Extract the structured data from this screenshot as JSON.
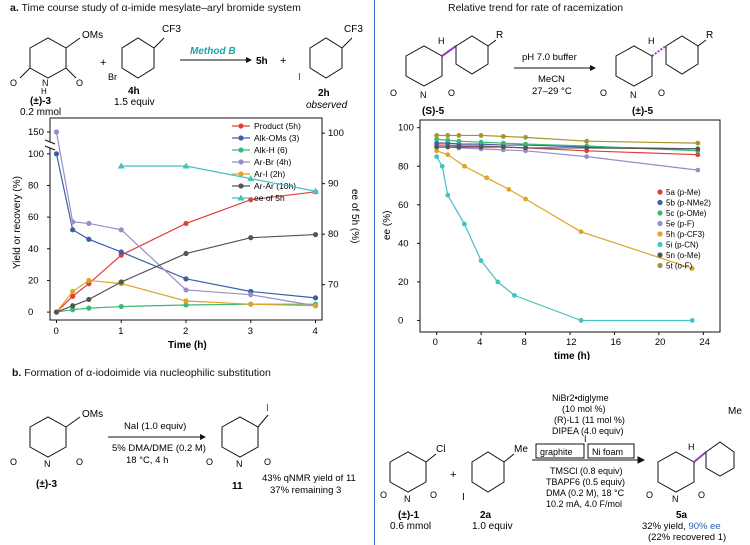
{
  "panel_a": {
    "header_letter": "a.",
    "header_text": "Time course study of α-imide mesylate–aryl bromide system",
    "scheme": {
      "substrate_label": "(±)-3",
      "substrate_amount": "0.2 mmol",
      "substrate_group": "OMs",
      "plus": "+",
      "reagent_label": "4h",
      "reagent_amount": "1.5 equiv",
      "reagent_group": "CF3",
      "reagent_halogen": "Br",
      "method": "Method B",
      "product_label": "5h",
      "plus2": "+",
      "byproduct_label": "2h",
      "byproduct_note": "observed",
      "byproduct_group": "CF3",
      "byproduct_halogen": "I"
    }
  },
  "panel_b": {
    "header_letter": "b.",
    "header_text": "Formation of α-iodoimide via nucleophilic substitution",
    "substrate_label": "(±)-3",
    "substrate_group": "OMs",
    "condition_top": "NaI (1.0 equiv)",
    "condition_mid": "5% DMA/DME (0.2 M)",
    "condition_bot": "18 °C, 4 h",
    "product_label": "11",
    "product_group": "I",
    "yield_line1": "43% qNMR yield of 11",
    "yield_line2": "37% remaining 3"
  },
  "panel_c": {
    "header_text": "Relative trend for rate of racemization",
    "substrate_label": "(S)-5",
    "product_label": "(±)-5",
    "condition_top": "pH 7.0 buffer",
    "condition_mid": "MeCN",
    "condition_bot": "27–29 °C",
    "aryl_group": "R",
    "stereo_h": "H"
  },
  "panel_d": {
    "substrate_label": "(±)-1",
    "substrate_amount": "0.6 mmol",
    "substrate_group": "Cl",
    "plus": "+",
    "reagent_label": "2a",
    "reagent_amount": "1.0 equiv",
    "reagent_group": "Me",
    "reagent_halogen": "I",
    "cond1": "NiBr2•diglyme",
    "cond2": "(10 mol %)",
    "cond3": "(R)-L1 (11 mol %)",
    "cond4": "DIPEA (4.0 equiv)",
    "electrode_left": "graphite",
    "electrode_right": "Ni foam",
    "electrode_mid": "I",
    "cond5": "TMSCl (0.8 equiv)",
    "cond6": "TBAPF6 (0.5 equiv)",
    "cond7": "DMA (0.2 M), 18 °C",
    "cond8": "10.2 mA, 4.0 F/mol",
    "product_label": "5a",
    "product_group": "Me",
    "stereo_h": "H",
    "yield_text": "32% yield, ",
    "ee_text": "90% ee",
    "recovered_text": "(22% recovered 1)"
  },
  "chart_data": [
    {
      "type": "line",
      "xlabel": "Time (h)",
      "ylabel": "Yield or recovery (%)",
      "y2label": "ee of 5h (%)",
      "xlim": [
        -0.1,
        4.1
      ],
      "ylim": [
        -5,
        155
      ],
      "y2lim": [
        63,
        103
      ],
      "xticks": [
        "0",
        "1",
        "2",
        "3",
        "4"
      ],
      "yticks": [
        "0",
        "20",
        "40",
        "60",
        "80",
        "100",
        "150"
      ],
      "y2ticks": [
        "70",
        "80",
        "90",
        "100"
      ],
      "axis_break": true,
      "legend_position": "top-right",
      "series": [
        {
          "name": "Product (5h)",
          "color": "#e0403a",
          "marker": "circle",
          "x": [
            0,
            0.25,
            0.5,
            1,
            2,
            3,
            4
          ],
          "y": [
            0,
            10,
            18,
            36,
            56,
            71,
            76
          ]
        },
        {
          "name": "Alk-OMs (3)",
          "color": "#3c5fa8",
          "marker": "circle",
          "x": [
            0,
            0.25,
            0.5,
            1,
            2,
            3,
            4
          ],
          "y": [
            100,
            52,
            46,
            38,
            21,
            13,
            9
          ]
        },
        {
          "name": "Alk-H (6)",
          "color": "#3cb878",
          "marker": "circle",
          "x": [
            0,
            0.25,
            0.5,
            1,
            2,
            3,
            4
          ],
          "y": [
            0,
            1.5,
            2.5,
            3.5,
            4.5,
            5,
            5
          ]
        },
        {
          "name": "Ar-Br (4h)",
          "color": "#9a8ccc",
          "marker": "circle",
          "x": [
            0,
            0.25,
            0.5,
            1,
            2,
            3,
            4
          ],
          "y": [
            150,
            57,
            56,
            52,
            14,
            11,
            4
          ]
        },
        {
          "name": "Ar-I (2h)",
          "color": "#e0a428",
          "marker": "circle",
          "x": [
            0,
            0.25,
            0.5,
            1,
            2,
            3,
            4
          ],
          "y": [
            0,
            13,
            20,
            18,
            7,
            5,
            4
          ]
        },
        {
          "name": "Ar-Ar (10h)",
          "color": "#555555",
          "marker": "circle",
          "x": [
            0,
            0.25,
            0.5,
            1,
            2,
            3,
            4
          ],
          "y": [
            0,
            4,
            8,
            19,
            37,
            47,
            49
          ]
        },
        {
          "name": "ee of 5h",
          "color": "#45c2c2",
          "marker": "triangle",
          "axis": "y2",
          "x": [
            1,
            2,
            3,
            4
          ],
          "y": [
            93.5,
            93.5,
            91,
            88.5
          ]
        }
      ]
    },
    {
      "type": "line",
      "xlabel": "time (h)",
      "ylabel": "ee (%)",
      "xlim": [
        -1.5,
        25.5
      ],
      "ylim": [
        -6,
        104
      ],
      "xticks": [
        "0",
        "4",
        "8",
        "12",
        "16",
        "20",
        "24"
      ],
      "yticks": [
        "0",
        "20",
        "40",
        "60",
        "80",
        "100"
      ],
      "legend_position": "center-right",
      "series": [
        {
          "name": "5a (p-Me)",
          "color": "#e0403a",
          "x": [
            0,
            1,
            2,
            4,
            6,
            8,
            13.5,
            23.5
          ],
          "y": [
            91,
            91,
            90.5,
            90.5,
            90,
            89.5,
            88,
            86
          ]
        },
        {
          "name": "5b (p-NMe2)",
          "color": "#3c5fa8",
          "x": [
            0,
            1,
            2,
            4,
            6,
            8,
            13.5,
            23.5
          ],
          "y": [
            92,
            92,
            91.5,
            91.5,
            91,
            91,
            90,
            89
          ]
        },
        {
          "name": "5c (p-OMe)",
          "color": "#3cb878",
          "x": [
            0,
            1,
            2,
            4,
            6,
            8,
            13.5,
            23.5
          ],
          "y": [
            94,
            93.5,
            93,
            92.5,
            92,
            91.5,
            90.5,
            88
          ]
        },
        {
          "name": "5e (p-F)",
          "color": "#9a8ccc",
          "x": [
            0,
            1,
            2,
            4,
            6,
            8,
            13.5,
            23.5
          ],
          "y": [
            90,
            90,
            89.5,
            89,
            88.5,
            88,
            85,
            78
          ]
        },
        {
          "name": "5h (p-CF3)",
          "color": "#e0a428",
          "x": [
            0,
            1,
            2.5,
            4.5,
            6.5,
            8,
            13,
            23
          ],
          "y": [
            88,
            86,
            80,
            74,
            68,
            63,
            46,
            27
          ]
        },
        {
          "name": "5i (p-CN)",
          "color": "#45c2c2",
          "x": [
            0,
            0.5,
            1,
            2.5,
            4,
            5.5,
            7,
            13,
            23
          ],
          "y": [
            85,
            80,
            65,
            50,
            31,
            20,
            13,
            0,
            0
          ]
        },
        {
          "name": "5n (o-Me)",
          "color": "#555555",
          "x": [
            0,
            1,
            2,
            4,
            6,
            8,
            13.5,
            23.5
          ],
          "y": [
            90,
            90,
            90,
            90,
            90,
            89.5,
            89.5,
            89
          ]
        },
        {
          "name": "5t (o-F)",
          "color": "#a6952a",
          "x": [
            0,
            1,
            2,
            4,
            6,
            8,
            13.5,
            23.5
          ],
          "y": [
            96,
            96,
            96,
            96,
            95.5,
            95,
            93,
            92
          ]
        }
      ]
    }
  ],
  "colors": {
    "accent_teal": "#1aa5a5",
    "divider_blue": "#3a6bc4",
    "ee_blue": "#2a63b8"
  }
}
